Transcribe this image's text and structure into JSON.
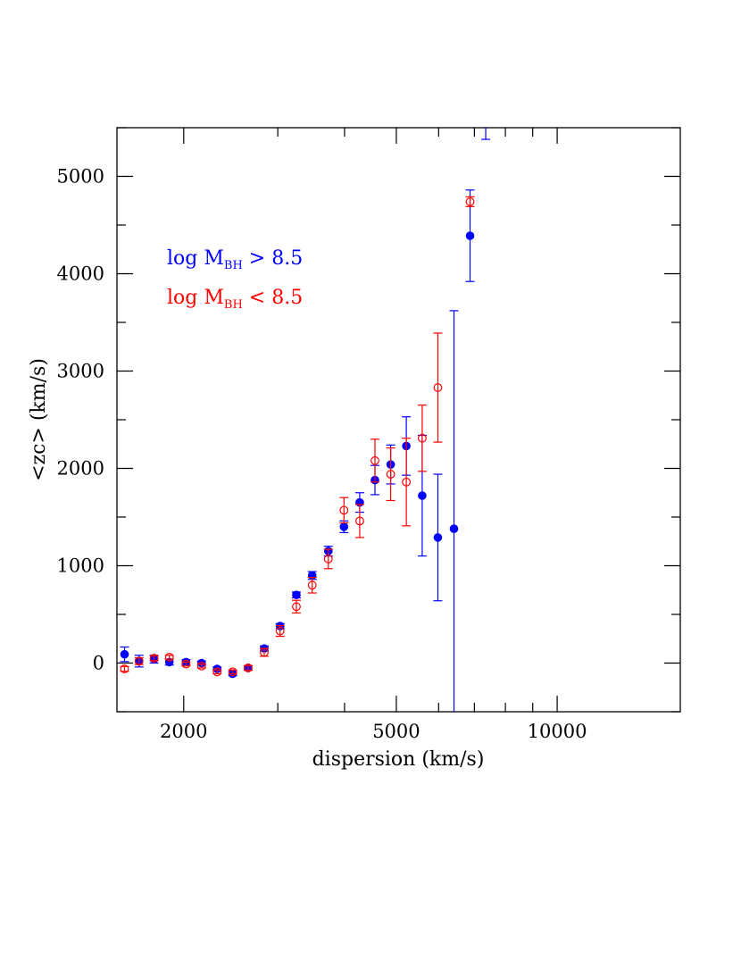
{
  "chart_data": {
    "type": "scatter",
    "title": "",
    "xlabel": "dispersion (km/s)",
    "ylabel": "<zc> (km/s)",
    "x_scale": "log",
    "xlim": [
      1500,
      17000
    ],
    "ylim": [
      -500,
      5500
    ],
    "x_tick_labels": [
      "2000",
      "5000",
      "10000"
    ],
    "x_ticks": [
      2000,
      5000,
      10000
    ],
    "y_tick_labels": [
      "0",
      "1000",
      "2000",
      "3000",
      "4000",
      "5000"
    ],
    "y_ticks": [
      0,
      1000,
      2000,
      3000,
      4000,
      5000
    ],
    "grid": false,
    "legend_position": "upper-left",
    "series": [
      {
        "name": "log M_BH > 8.5",
        "legend": {
          "prefix": "log M",
          "subscript": "BH",
          "suffix": " > 8.5"
        },
        "color": "#0000ff",
        "marker": "filled-circle",
        "points": [
          {
            "x": 1550,
            "y": 90,
            "err": 75
          },
          {
            "x": 1650,
            "y": 20,
            "err": 60
          },
          {
            "x": 1760,
            "y": 40,
            "err": 40
          },
          {
            "x": 1880,
            "y": 10,
            "err": 30
          },
          {
            "x": 2020,
            "y": 10,
            "err": 25
          },
          {
            "x": 2160,
            "y": 0,
            "err": 20
          },
          {
            "x": 2310,
            "y": -60,
            "err": 20
          },
          {
            "x": 2470,
            "y": -110,
            "err": 20
          },
          {
            "x": 2640,
            "y": -50,
            "err": 20
          },
          {
            "x": 2830,
            "y": 150,
            "err": 25
          },
          {
            "x": 3030,
            "y": 380,
            "err": 25
          },
          {
            "x": 3250,
            "y": 700,
            "err": 30
          },
          {
            "x": 3480,
            "y": 900,
            "err": 40
          },
          {
            "x": 3730,
            "y": 1150,
            "err": 50
          },
          {
            "x": 3990,
            "y": 1400,
            "err": 60
          },
          {
            "x": 4270,
            "y": 1650,
            "err": 100
          },
          {
            "x": 4560,
            "y": 1880,
            "err": 150
          },
          {
            "x": 4880,
            "y": 2040,
            "err": 200
          },
          {
            "x": 5220,
            "y": 2230,
            "err": 300
          },
          {
            "x": 5590,
            "y": 1720,
            "err": 620
          },
          {
            "x": 5980,
            "y": 1290,
            "err": 650
          },
          {
            "x": 6410,
            "y": 1380,
            "err": 2240
          },
          {
            "x": 6870,
            "y": 4390,
            "err": 470
          },
          {
            "x": 7350,
            "y": 5650,
            "err": 270
          }
        ]
      },
      {
        "name": "log M_BH < 8.5",
        "legend": {
          "prefix": "log M",
          "subscript": "BH",
          "suffix": " < 8.5"
        },
        "color": "#ff0000",
        "marker": "open-circle",
        "points": [
          {
            "x": 1550,
            "y": -60,
            "err": 25
          },
          {
            "x": 1650,
            "y": 20,
            "err": 35
          },
          {
            "x": 1760,
            "y": 50,
            "err": 25
          },
          {
            "x": 1880,
            "y": 60,
            "err": 20
          },
          {
            "x": 2020,
            "y": -10,
            "err": 20
          },
          {
            "x": 2160,
            "y": -30,
            "err": 20
          },
          {
            "x": 2310,
            "y": -90,
            "err": 20
          },
          {
            "x": 2470,
            "y": -90,
            "err": 20
          },
          {
            "x": 2640,
            "y": -50,
            "err": 25
          },
          {
            "x": 2830,
            "y": 110,
            "err": 40
          },
          {
            "x": 3030,
            "y": 330,
            "err": 55
          },
          {
            "x": 3250,
            "y": 580,
            "err": 65
          },
          {
            "x": 3480,
            "y": 800,
            "err": 80
          },
          {
            "x": 3730,
            "y": 1070,
            "err": 100
          },
          {
            "x": 3990,
            "y": 1570,
            "err": 130
          },
          {
            "x": 4270,
            "y": 1460,
            "err": 170
          },
          {
            "x": 4560,
            "y": 2080,
            "err": 220
          },
          {
            "x": 4880,
            "y": 1940,
            "err": 270
          },
          {
            "x": 5220,
            "y": 1860,
            "err": 450
          },
          {
            "x": 5590,
            "y": 2310,
            "err": 340
          },
          {
            "x": 5980,
            "y": 2830,
            "err": 560
          },
          {
            "x": 6870,
            "y": 4740,
            "err": 50
          }
        ]
      }
    ]
  }
}
